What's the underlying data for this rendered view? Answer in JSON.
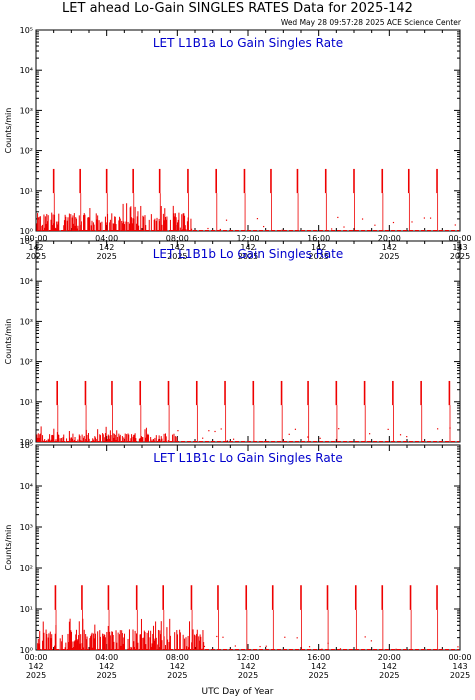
{
  "header": {
    "title": "LET ahead Lo-Gain SINGLES RATES Data for 2025-142",
    "timestamp": "Wed May 28 09:57:28 2025 ACE Science Center"
  },
  "x_axis_label": "UTC Day of Year",
  "colors": {
    "series": "#ee0000",
    "panel_title": "#0000cc",
    "axes": "#000000"
  },
  "chart_data": [
    {
      "type": "line",
      "title": "LET L1B1a Lo Gain Singles Rate",
      "ylabel": "Counts/min",
      "yscale": "log",
      "ylim": [
        1,
        100000
      ],
      "y_ticks": [
        "10⁰",
        "10¹",
        "10²",
        "10³",
        "10⁴",
        "10⁵"
      ],
      "xlim_hours": [
        0,
        24
      ],
      "x_ticks": [
        {
          "time": "00:00",
          "day": "142",
          "year": "2025"
        },
        {
          "time": "04:00",
          "day": "142",
          "year": "2025"
        },
        {
          "time": "08:00",
          "day": "142",
          "year": "2025"
        },
        {
          "time": "12:00",
          "day": "142",
          "year": "2025"
        },
        {
          "time": "16:00",
          "day": "142",
          "year": "2025"
        },
        {
          "time": "20:00",
          "day": "142",
          "year": "2025"
        },
        {
          "time": "00:00",
          "day": "143",
          "year": "2025"
        }
      ],
      "spike_hours": [
        1.0,
        2.5,
        4.0,
        5.5,
        7.0,
        8.6,
        10.2,
        11.8,
        13.3,
        14.8,
        16.4,
        18.0,
        19.6,
        21.1,
        22.7
      ],
      "spike_peak": 35,
      "baseline": 1.0,
      "noise_until_hour": 9.0,
      "noise_max": 5
    },
    {
      "type": "line",
      "title": "LET L1B1b Lo Gain Singles Rate",
      "ylabel": "Counts/min",
      "yscale": "log",
      "ylim": [
        1,
        100000
      ],
      "y_ticks": [
        "10⁰",
        "10¹",
        "10²",
        "10³",
        "10⁴",
        "10⁵"
      ],
      "xlim_hours": [
        0,
        24
      ],
      "x_ticks": [],
      "spike_hours": [
        1.2,
        2.8,
        4.3,
        5.9,
        7.5,
        9.1,
        10.7,
        12.3,
        13.9,
        15.4,
        17.0,
        18.6,
        20.2,
        21.8,
        23.4
      ],
      "spike_peak": 33,
      "baseline": 1.0,
      "noise_until_hour": 8.0,
      "noise_max": 2.5
    },
    {
      "type": "line",
      "title": "LET L1B1c Lo Gain Singles Rate",
      "ylabel": "Counts/min",
      "yscale": "log",
      "ylim": [
        1,
        100000
      ],
      "y_ticks": [
        "10⁰",
        "10¹",
        "10²",
        "10³",
        "10⁴",
        "10⁵"
      ],
      "xlim_hours": [
        0,
        24
      ],
      "x_ticks": [
        {
          "time": "00:00",
          "day": "142",
          "year": "2025"
        },
        {
          "time": "04:00",
          "day": "142",
          "year": "2025"
        },
        {
          "time": "08:00",
          "day": "142",
          "year": "2025"
        },
        {
          "time": "12:00",
          "day": "142",
          "year": "2025"
        },
        {
          "time": "16:00",
          "day": "142",
          "year": "2025"
        },
        {
          "time": "20:00",
          "day": "142",
          "year": "2025"
        },
        {
          "time": "00:00",
          "day": "143",
          "year": "2025"
        }
      ],
      "spike_hours": [
        1.1,
        2.6,
        4.1,
        5.7,
        7.2,
        8.8,
        10.3,
        11.9,
        13.4,
        15.0,
        16.5,
        18.1,
        19.6,
        21.2,
        22.7
      ],
      "spike_peak": 38,
      "baseline": 1.0,
      "noise_until_hour": 9.5,
      "noise_max": 6
    }
  ]
}
